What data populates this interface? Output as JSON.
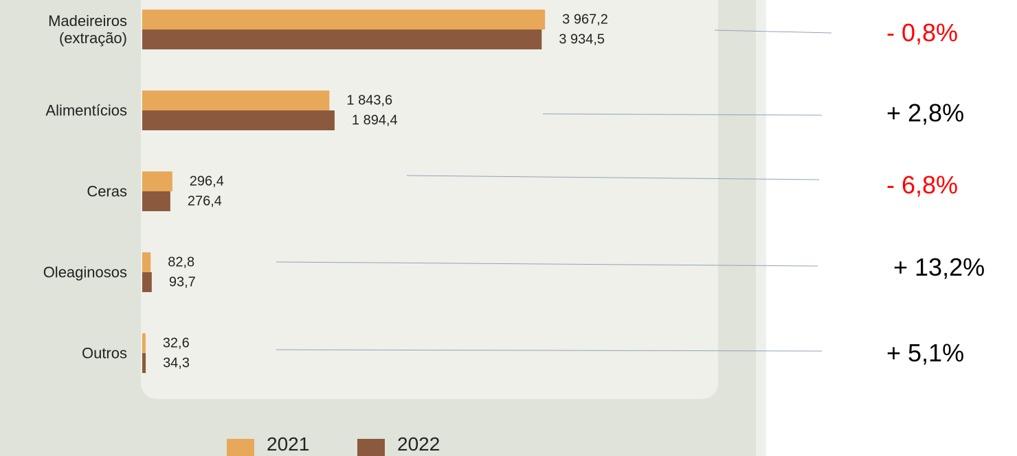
{
  "chart_data": {
    "type": "bar",
    "orientation": "horizontal",
    "categories": [
      "Madeireiros\n(extração)",
      "Alimentícios",
      "Ceras",
      "Oleaginosos",
      "Outros"
    ],
    "series": [
      {
        "name": "2021",
        "color": "#e8a85a",
        "values": [
          3967.2,
          1843.6,
          296.4,
          82.8,
          32.6
        ],
        "value_labels": [
          "3 967,2",
          "1 843,6",
          "296,4",
          "82,8",
          "32,6"
        ]
      },
      {
        "name": "2022",
        "color": "#8b5a3e",
        "values": [
          3934.5,
          1894.4,
          276.4,
          93.7,
          34.3
        ],
        "value_labels": [
          "3 934,5",
          "1 894,4",
          "276,4",
          "93,7",
          "34,3"
        ]
      }
    ],
    "xlim": [
      0,
      4000
    ],
    "annotations": [
      {
        "text": "- 0,8%",
        "color": "#ff0000"
      },
      {
        "text": "+ 2,8%",
        "color": "#000000"
      },
      {
        "text": "- 6,8%",
        "color": "#ff0000"
      },
      {
        "text": "+ 13,2%",
        "color": "#000000"
      },
      {
        "text": "+ 5,1%",
        "color": "#000000"
      }
    ]
  }
}
